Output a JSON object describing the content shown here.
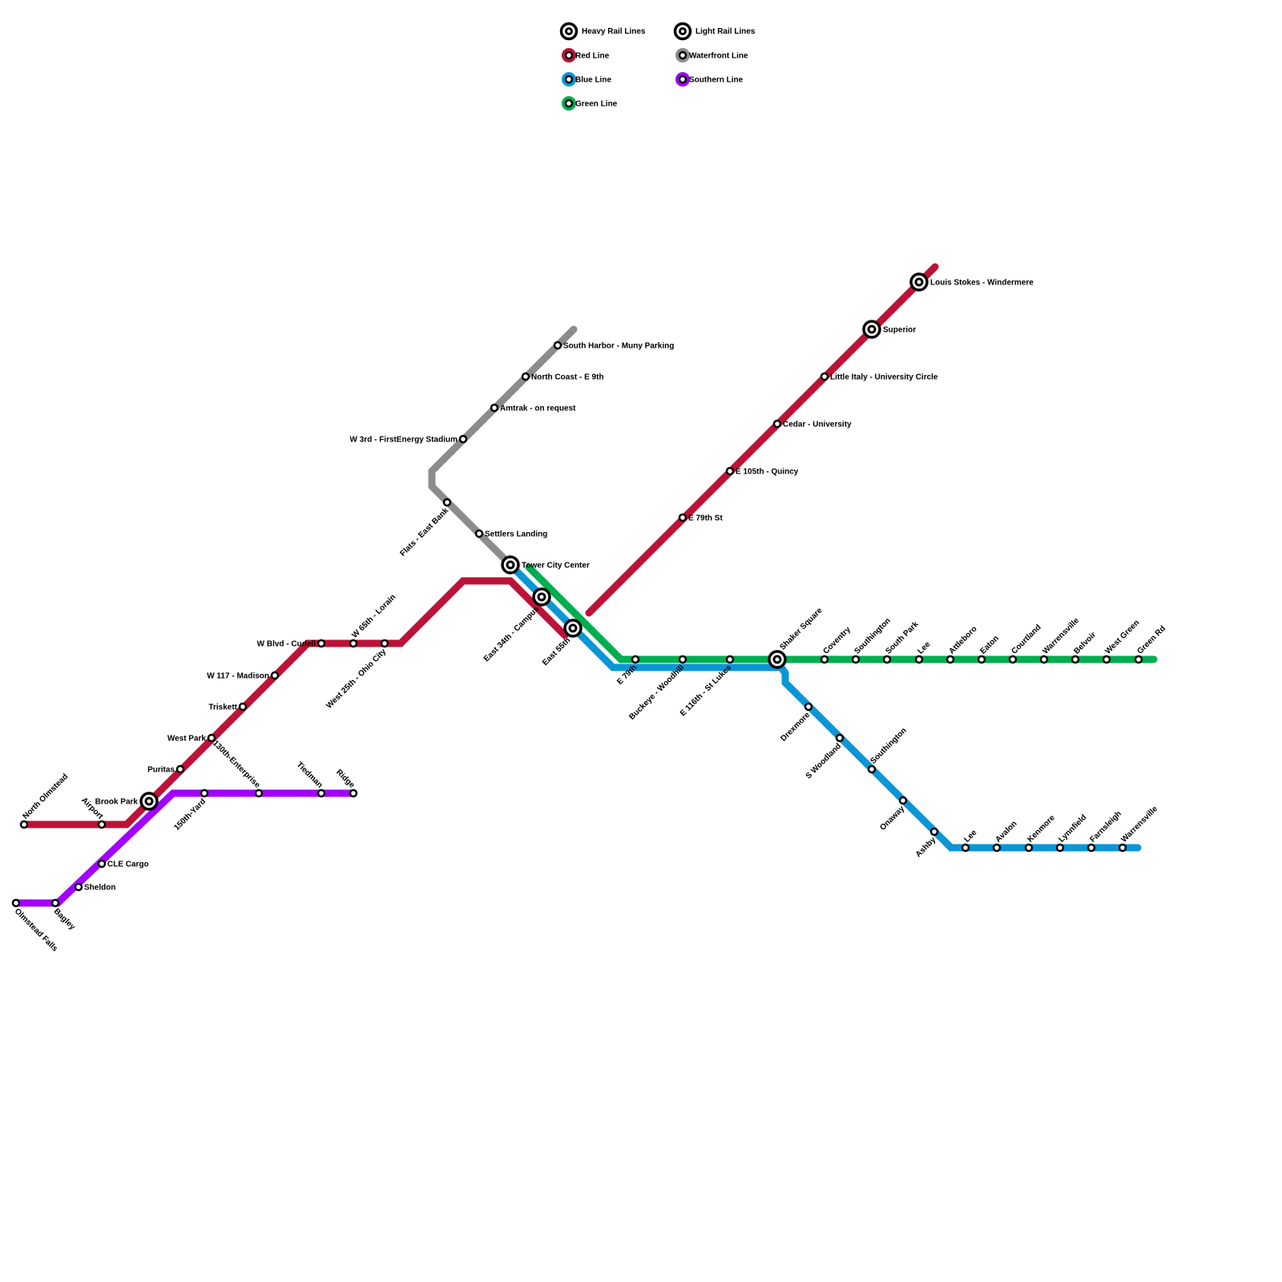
{
  "legend": {
    "heavy_rail": "Heavy Rail Lines",
    "light_rail": "Light Rail Lines",
    "items": [
      {
        "label": "Red Line",
        "color": "#bc1237"
      },
      {
        "label": "Blue Line",
        "color": "#0b96d6"
      },
      {
        "label": "Green Line",
        "color": "#00ad4f"
      },
      {
        "label": "Waterfront Line",
        "color": "#8c8c8c"
      },
      {
        "label": "Southern Line",
        "color": "#a100ff"
      }
    ]
  },
  "lines": {
    "red": {
      "name": "Red Line",
      "color": "#bc1237"
    },
    "blue": {
      "name": "Blue Line",
      "color": "#0b96d6"
    },
    "green": {
      "name": "Green Line",
      "color": "#00ad4f"
    },
    "waterfront": {
      "name": "Waterfront Line",
      "color": "#8c8c8c"
    },
    "southern": {
      "name": "Southern Line",
      "color": "#a100ff"
    }
  },
  "stations": [
    {
      "name": "North Olmstead",
      "interchange": false
    },
    {
      "name": "Airport",
      "interchange": false
    },
    {
      "name": "Brook Park",
      "interchange": true
    },
    {
      "name": "Puritas",
      "interchange": false
    },
    {
      "name": "West Park",
      "interchange": false
    },
    {
      "name": "Triskett",
      "interchange": false
    },
    {
      "name": "W 117 - Madison",
      "interchange": false
    },
    {
      "name": "W Blvd - Cudell",
      "interchange": false
    },
    {
      "name": "W 65th - Lorain",
      "interchange": false
    },
    {
      "name": "West 25th - Ohio City",
      "interchange": false
    },
    {
      "name": "Tower City Center",
      "interchange": true
    },
    {
      "name": "East 34th - Campus",
      "interchange": true
    },
    {
      "name": "East 55th",
      "interchange": true
    },
    {
      "name": "E 79th St",
      "interchange": false
    },
    {
      "name": "E 105th - Quincy",
      "interchange": false
    },
    {
      "name": "Cedar - University",
      "interchange": false
    },
    {
      "name": "Little Italy - University Circle",
      "interchange": false
    },
    {
      "name": "Superior",
      "interchange": true
    },
    {
      "name": "Louis Stokes - Windermere",
      "interchange": true
    },
    {
      "name": "Settlers Landing",
      "interchange": false
    },
    {
      "name": "Flats - East Bank",
      "interchange": false
    },
    {
      "name": "W 3rd - FirstEnergy Stadium",
      "interchange": false
    },
    {
      "name": "Amtrak - on request",
      "interchange": false
    },
    {
      "name": "North Coast - E 9th",
      "interchange": false
    },
    {
      "name": "South Harbor - Muny Parking",
      "interchange": false
    },
    {
      "name": "E 79th",
      "interchange": false
    },
    {
      "name": "Buckeye - Woodhill",
      "interchange": false
    },
    {
      "name": "E 116th - St Lukes",
      "interchange": false
    },
    {
      "name": "Shaker Square",
      "interchange": true
    },
    {
      "name": "Coventry",
      "interchange": false
    },
    {
      "name": "Southington",
      "interchange": false
    },
    {
      "name": "South Park",
      "interchange": false
    },
    {
      "name": "Lee",
      "interchange": false
    },
    {
      "name": "Attleboro",
      "interchange": false
    },
    {
      "name": "Eaton",
      "interchange": false
    },
    {
      "name": "Courtland",
      "interchange": false
    },
    {
      "name": "Warrensville",
      "interchange": false
    },
    {
      "name": "Belvoir",
      "interchange": false
    },
    {
      "name": "West Green",
      "interchange": false
    },
    {
      "name": "Green Rd",
      "interchange": false
    },
    {
      "name": "Drexmore",
      "interchange": false
    },
    {
      "name": "S Woodland",
      "interchange": false
    },
    {
      "name": "Southington",
      "interchange": false
    },
    {
      "name": "Onaway",
      "interchange": false
    },
    {
      "name": "Ashby",
      "interchange": false
    },
    {
      "name": "Lee",
      "interchange": false
    },
    {
      "name": "Avalon",
      "interchange": false
    },
    {
      "name": "Kenmore",
      "interchange": false
    },
    {
      "name": "Lynnfield",
      "interchange": false
    },
    {
      "name": "Farnsleigh",
      "interchange": false
    },
    {
      "name": "Warrensville",
      "interchange": false
    },
    {
      "name": "Olmstead Falls",
      "interchange": false
    },
    {
      "name": "Bagley",
      "interchange": false
    },
    {
      "name": "Sheldon",
      "interchange": false
    },
    {
      "name": "CLE Cargo",
      "interchange": false
    },
    {
      "name": "150th-Yard",
      "interchange": false
    },
    {
      "name": "130th-Enterprise",
      "interchange": false
    },
    {
      "name": "Tiedman",
      "interchange": false
    },
    {
      "name": "Ridge",
      "interchange": false
    }
  ]
}
